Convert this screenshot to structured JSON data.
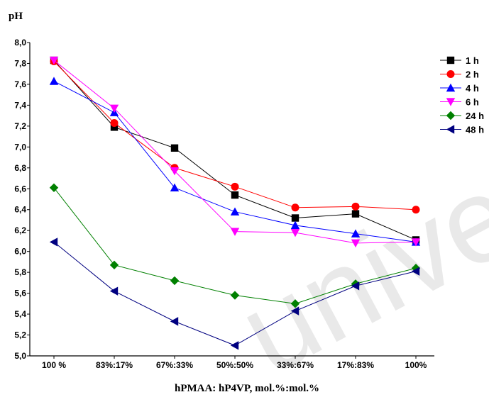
{
  "watermark": "univer",
  "chart_data": {
    "type": "line",
    "ylabel": "pH",
    "xlabel": "hPMAA: hP4VP, mol.%:mol.%",
    "categories": [
      "100 %",
      "83%:17%",
      "67%:33%",
      "50%:50%",
      "33%:67%",
      "17%:83%",
      "100%"
    ],
    "ylim": [
      5.0,
      8.0
    ],
    "yticks": [
      "5,0",
      "5,2",
      "5,4",
      "5,6",
      "5,8",
      "6,0",
      "6,2",
      "6,4",
      "6,6",
      "6,8",
      "7,0",
      "7,2",
      "7,4",
      "7,6",
      "7,8",
      "8,0"
    ],
    "legend_position": "top-right",
    "grid": false,
    "series": [
      {
        "name": "1 h",
        "color": "#000000",
        "marker": "square",
        "values": [
          7.83,
          7.19,
          6.99,
          6.54,
          6.32,
          6.36,
          6.11
        ]
      },
      {
        "name": "2 h",
        "color": "#ff0000",
        "marker": "circle",
        "values": [
          7.82,
          7.23,
          6.8,
          6.62,
          6.42,
          6.43,
          6.4
        ]
      },
      {
        "name": "4 h",
        "color": "#0000ff",
        "marker": "triangle-up",
        "values": [
          7.63,
          7.33,
          6.61,
          6.38,
          6.25,
          6.17,
          6.09
        ]
      },
      {
        "name": "6 h",
        "color": "#ff00ff",
        "marker": "triangle-down",
        "values": [
          7.83,
          7.37,
          6.77,
          6.19,
          6.18,
          6.08,
          6.09
        ]
      },
      {
        "name": "24 h",
        "color": "#008000",
        "marker": "diamond",
        "values": [
          6.61,
          5.87,
          5.72,
          5.58,
          5.5,
          5.69,
          5.84
        ]
      },
      {
        "name": "48 h",
        "color": "#000080",
        "marker": "triangle-left",
        "values": [
          6.09,
          5.62,
          5.33,
          5.1,
          5.43,
          5.67,
          5.81
        ]
      }
    ]
  }
}
